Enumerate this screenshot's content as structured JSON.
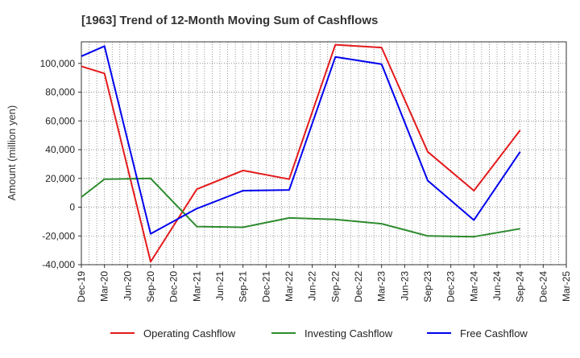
{
  "chart_data": {
    "type": "line",
    "title": "[1963]  Trend of 12-Month Moving Sum of Cashflows",
    "xlabel": "",
    "ylabel": "Amount (million yen)",
    "ylim": [
      -40000,
      115000
    ],
    "yticks": [
      -40000,
      -20000,
      0,
      20000,
      40000,
      60000,
      80000,
      100000
    ],
    "ytick_labels": [
      "-40,000",
      "-20,000",
      "0",
      "20,000",
      "40,000",
      "60,000",
      "80,000",
      "100,000"
    ],
    "categories": [
      "Dec-19",
      "Mar-20",
      "Jun-20",
      "Sep-20",
      "Dec-20",
      "Mar-21",
      "Jun-21",
      "Sep-21",
      "Dec-21",
      "Mar-22",
      "Jun-22",
      "Sep-22",
      "Dec-22",
      "Mar-23",
      "Jun-23",
      "Sep-23",
      "Dec-23",
      "Mar-24",
      "Jun-24",
      "Sep-24",
      "Dec-24",
      "Mar-25"
    ],
    "grid": true,
    "legend_position": "bottom",
    "series": [
      {
        "name": "Operating Cashflow",
        "color": "#e31a1c",
        "values": [
          98000,
          93000,
          null,
          -38000,
          null,
          12500,
          null,
          25500,
          null,
          19500,
          null,
          113000,
          null,
          111000,
          null,
          38500,
          null,
          11500,
          null,
          53500,
          null,
          null
        ]
      },
      {
        "name": "Investing Cashflow",
        "color": "#2e8b2e",
        "values": [
          7000,
          19500,
          null,
          20000,
          null,
          -13500,
          null,
          -14000,
          null,
          -7500,
          null,
          -8500,
          null,
          -11500,
          null,
          -20000,
          null,
          -20500,
          null,
          -15000,
          null,
          null
        ]
      },
      {
        "name": "Free Cashflow",
        "color": "#0000ee",
        "values": [
          105000,
          112000,
          null,
          -18500,
          null,
          -1000,
          null,
          11500,
          null,
          12000,
          null,
          104500,
          null,
          99500,
          null,
          18500,
          null,
          -9000,
          null,
          38500,
          null,
          null
        ]
      }
    ]
  }
}
